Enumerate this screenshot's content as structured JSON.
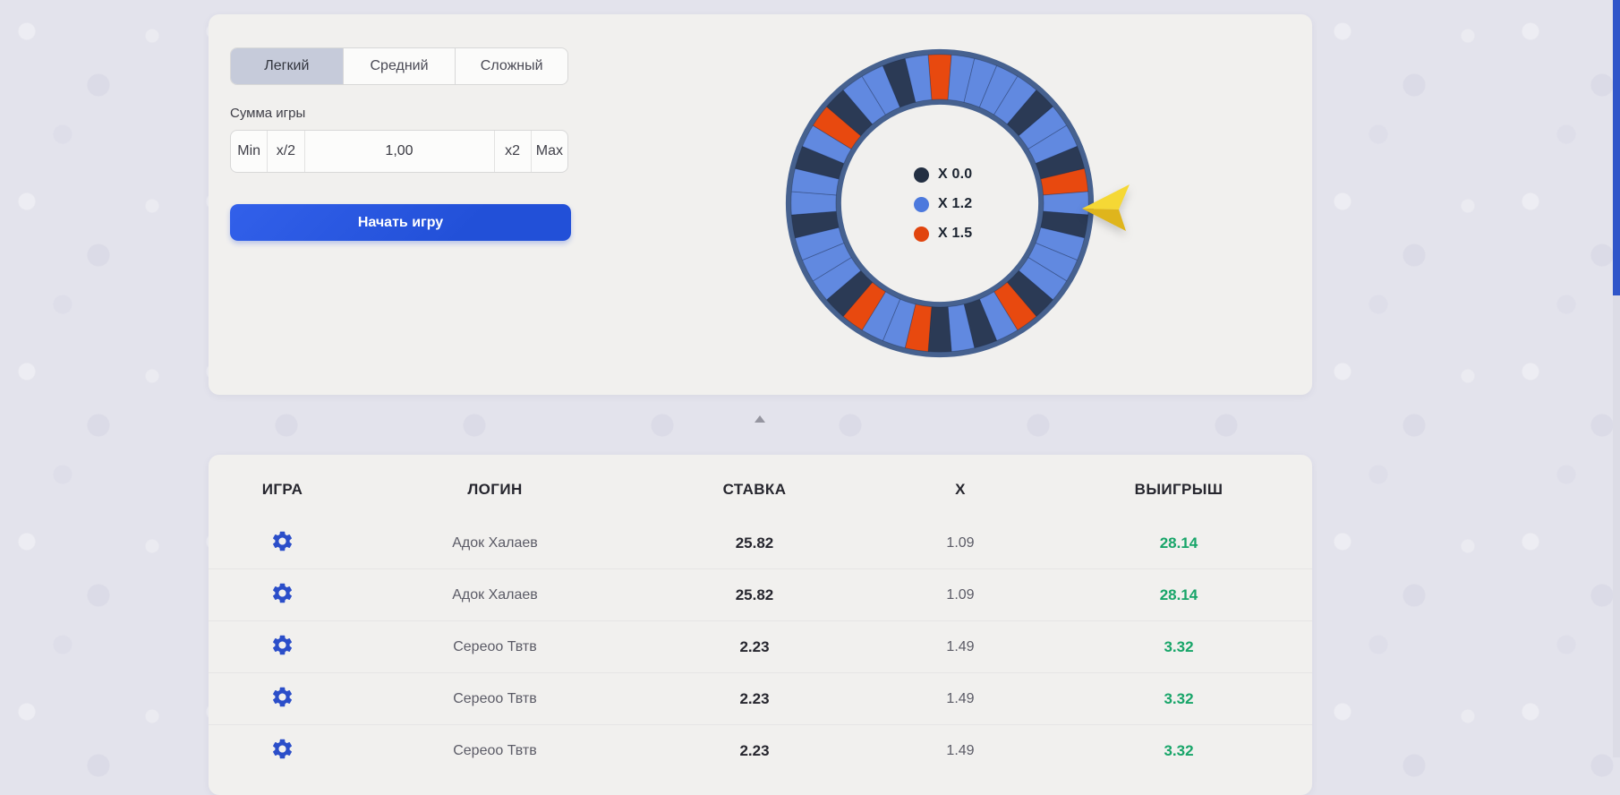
{
  "panel": {
    "tabs": [
      {
        "label": "Легкий",
        "active": true
      },
      {
        "label": "Средний",
        "active": false
      },
      {
        "label": "Сложный",
        "active": false
      }
    ],
    "bet": {
      "label": "Сумма игры",
      "min_label": "Min",
      "half_label": "x/2",
      "value": "1,00",
      "double_label": "x2",
      "max_label": "Max"
    },
    "start_button_label": "Начать игру"
  },
  "wheel": {
    "legend": [
      {
        "label": "X 0.0",
        "color": "#232f42"
      },
      {
        "label": "X 1.2",
        "color": "#4c79dd"
      },
      {
        "label": "X 1.5",
        "color": "#e1440d"
      }
    ],
    "segment_colors": {
      "b": "#6189e0",
      "n": "#2b3a55",
      "o": "#e8490f"
    },
    "rim_color": "#46618f",
    "slice_stroke": "rgba(25,40,70,0.35)",
    "segments": [
      "o",
      "b",
      "b",
      "b",
      "b",
      "n",
      "b",
      "b",
      "n",
      "o",
      "b",
      "n",
      "b",
      "b",
      "b",
      "n",
      "o",
      "b",
      "n",
      "b",
      "n",
      "o",
      "b",
      "b",
      "o",
      "n",
      "b",
      "b",
      "b",
      "n",
      "b",
      "b",
      "n",
      "b",
      "o",
      "n",
      "b",
      "b",
      "n",
      "b"
    ],
    "pointer_color": "#f2cf2a",
    "pointer_shade": "#dfb51c"
  },
  "collapse": {
    "icon": "chevron-up-icon"
  },
  "history": {
    "headers": [
      "ИГРА",
      "ЛОГИН",
      "СТАВКА",
      "X",
      "ВЫИГРЫШ"
    ],
    "row_icon": "gear-icon",
    "win_color": "#18a569",
    "rows": [
      {
        "login": "Адок Халаев",
        "bet": "25.82",
        "x": "1.09",
        "win": "28.14"
      },
      {
        "login": "Адок Халаев",
        "bet": "25.82",
        "x": "1.09",
        "win": "28.14"
      },
      {
        "login": "Сереоо Твтв",
        "bet": "2.23",
        "x": "1.49",
        "win": "3.32"
      },
      {
        "login": "Сереоо Твтв",
        "bet": "2.23",
        "x": "1.49",
        "win": "3.32"
      },
      {
        "login": "Сереоо Твтв",
        "bet": "2.23",
        "x": "1.49",
        "win": "3.32"
      }
    ]
  }
}
